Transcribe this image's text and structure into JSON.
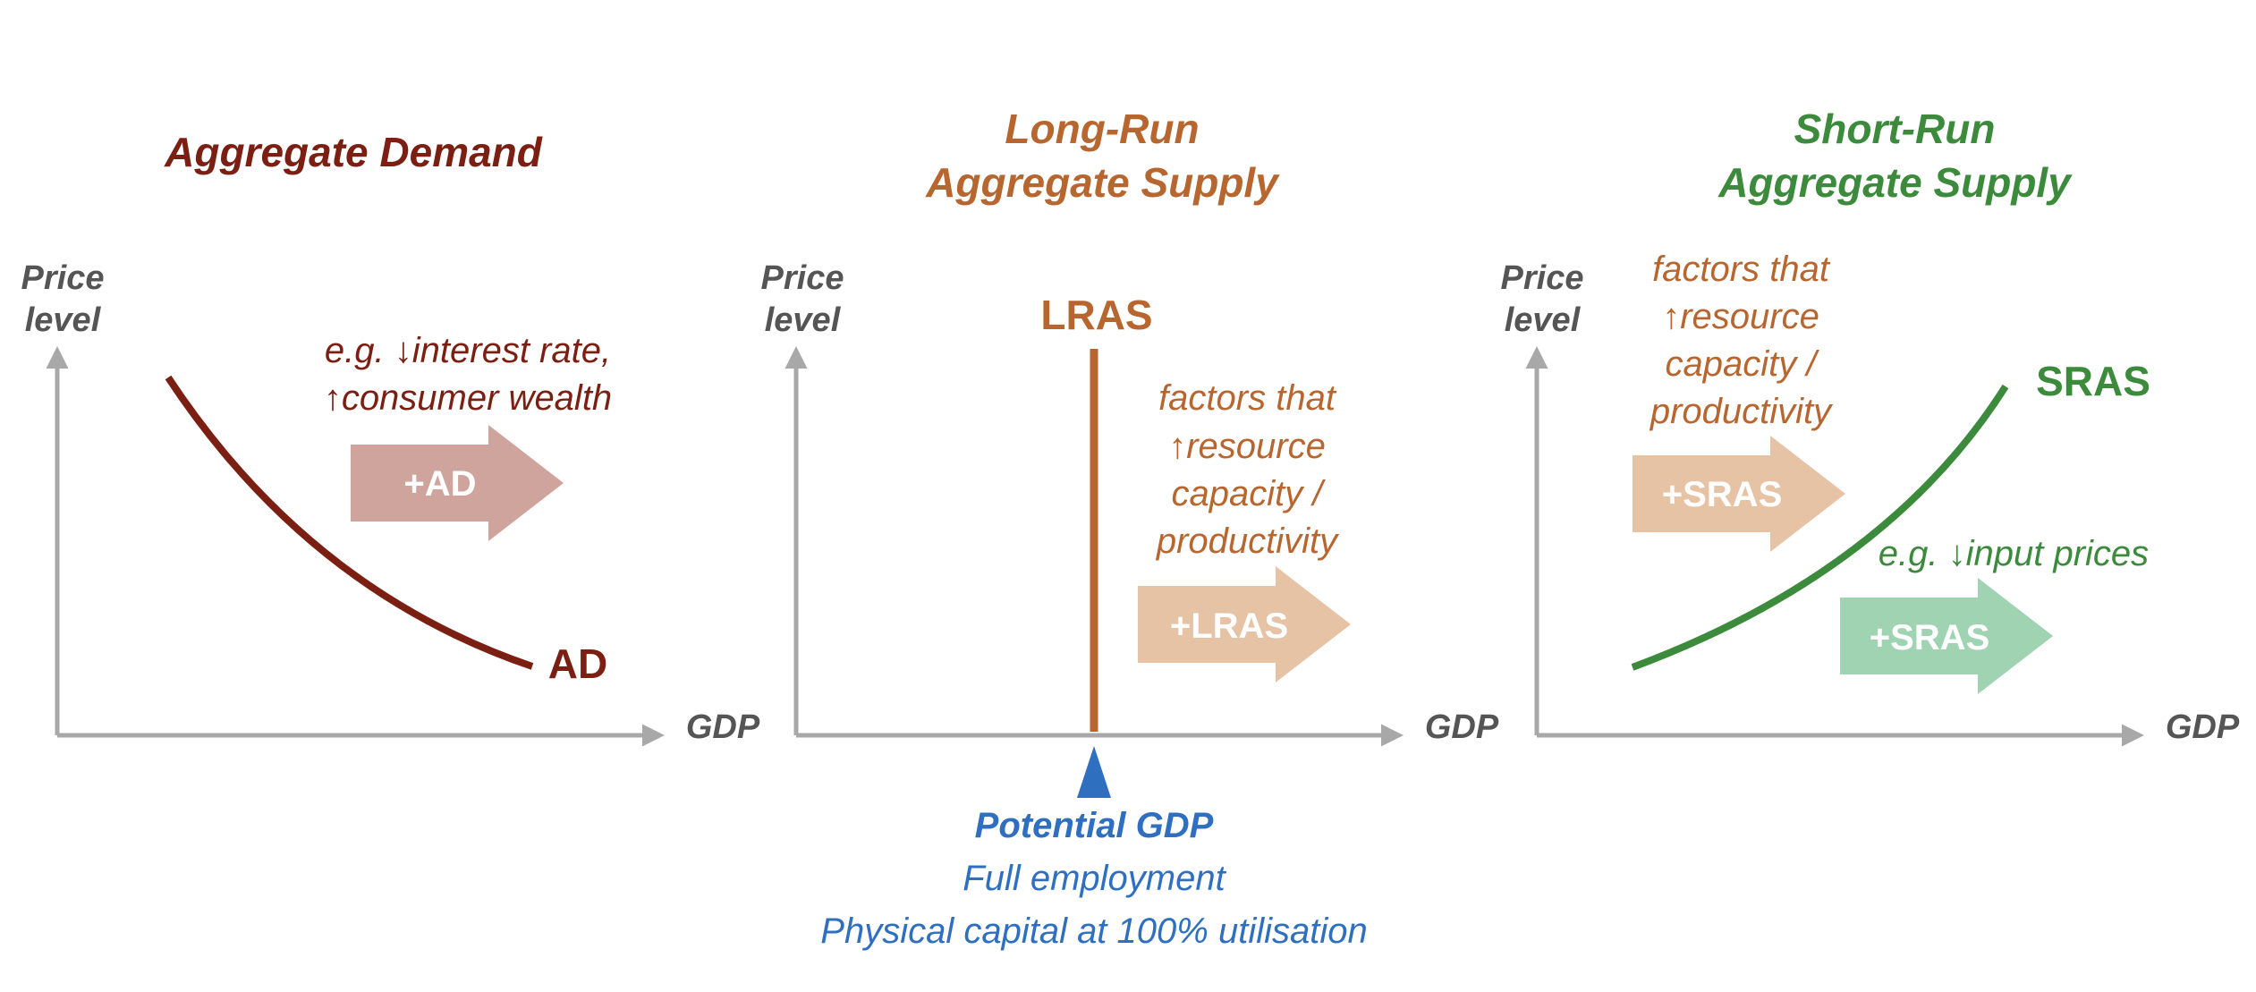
{
  "colors": {
    "ad": "#7b1f13",
    "lras": "#b8662f",
    "sras": "#3c8a3c",
    "axis": "#a8a8a8",
    "axis_label": "#555555",
    "potential": "#2f6fc0",
    "ad_arrow": "#cfa49c",
    "supply_arrow": "#e7c3a6",
    "sras_green_arrow": "#9fd3b2"
  },
  "panels": {
    "ad": {
      "title": "Aggregate Demand",
      "y_axis_label_1": "Price",
      "y_axis_label_2": "level",
      "x_axis_label": "GDP",
      "note_line1": "e.g. ↓interest rate,",
      "note_line2": "↑consumer wealth",
      "arrow_label": "+AD",
      "curve_label": "AD"
    },
    "lras": {
      "title_line1": "Long-Run",
      "title_line2": "Aggregate Supply",
      "y_axis_label_1": "Price",
      "y_axis_label_2": "level",
      "x_axis_label": "GDP",
      "curve_label": "LRAS",
      "note_line1": "factors that",
      "note_line2": "↑resource",
      "note_line3": "capacity /",
      "note_line4": "productivity",
      "arrow_label": "+LRAS",
      "potential_title": "Potential GDP",
      "potential_line1": "Full employment",
      "potential_line2": "Physical capital at 100% utilisation"
    },
    "sras": {
      "title_line1": "Short-Run",
      "title_line2": "Aggregate Supply",
      "y_axis_label_1": "Price",
      "y_axis_label_2": "level",
      "x_axis_label": "GDP",
      "curve_label": "SRAS",
      "note_line1": "factors that",
      "note_line2": "↑resource",
      "note_line3": "capacity /",
      "note_line4": "productivity",
      "arrow1_label": "+SRAS",
      "note2": "e.g. ↓input prices",
      "arrow2_label": "+SRAS"
    }
  }
}
